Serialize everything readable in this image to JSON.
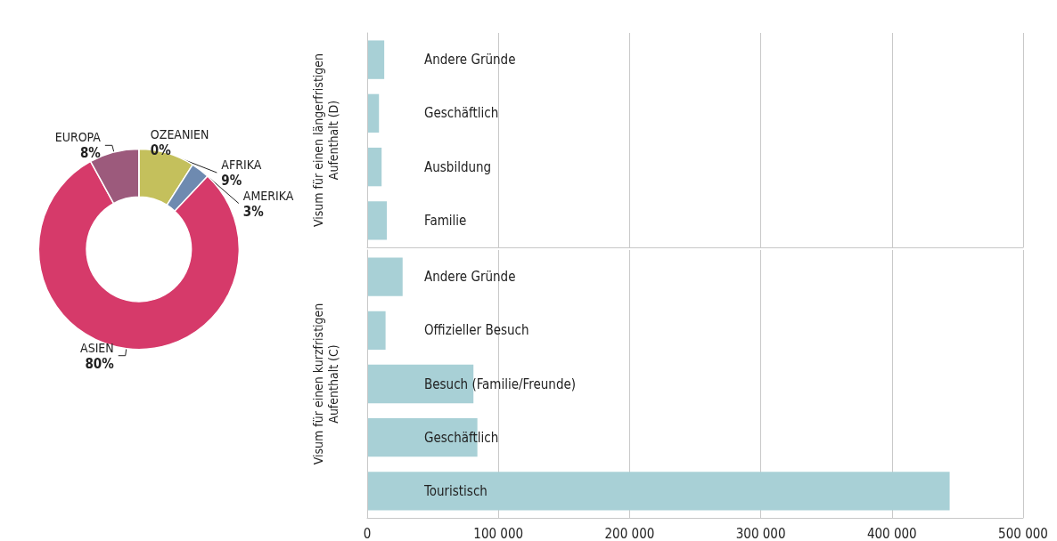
{
  "chart_data": [
    {
      "type": "donut",
      "categories": [
        "AFRIKA",
        "AMERIKA",
        "ASIEN",
        "EUROPA",
        "OZEANIEN"
      ],
      "values": [
        9,
        3,
        80,
        8,
        0
      ],
      "colors": [
        "#c4c05c",
        "#6e8ab0",
        "#d63a6a",
        "#9c5a7c",
        "#8a4a6a"
      ],
      "value_labels": [
        "9%",
        "3%",
        "80%",
        "8%",
        "0%"
      ]
    },
    {
      "type": "bar",
      "orientation": "horizontal",
      "ylabel": "Visum für einen längerfristigen Aufenthalt (D)",
      "categories": [
        "Andere Gründe",
        "Geschäftlich",
        "Ausbildung",
        "Familie"
      ],
      "values": [
        13000,
        9000,
        11000,
        15000
      ],
      "color": "#a8d0d6",
      "xlim": [
        0,
        500000
      ],
      "xticks": [
        0,
        100000,
        200000,
        300000,
        400000,
        500000
      ],
      "grid": "x",
      "tick_labels": "y"
    },
    {
      "type": "bar",
      "orientation": "horizontal",
      "ylabel": "Visum für einen kurzfristigen Aufenthalt (C)",
      "categories": [
        "Andere Gründe",
        "Offizieller Besuch",
        "Besuch (Familie/Freunde)",
        "Geschäftlich",
        "Touristisch"
      ],
      "values": [
        27000,
        14000,
        81000,
        84000,
        444000
      ],
      "color": "#a8d0d6",
      "xlim": [
        0,
        500000
      ],
      "xticks": [
        0,
        {
          "value": 100000,
          "label": "100 000"
        },
        {
          "value": 200000,
          "label": "200 000"
        },
        {
          "value": 300000,
          "label": "300 000"
        },
        {
          "value": 400000,
          "label": "400 000"
        },
        {
          "value": 500000,
          "label": "500 000"
        }
      ],
      "grid": "x"
    }
  ]
}
